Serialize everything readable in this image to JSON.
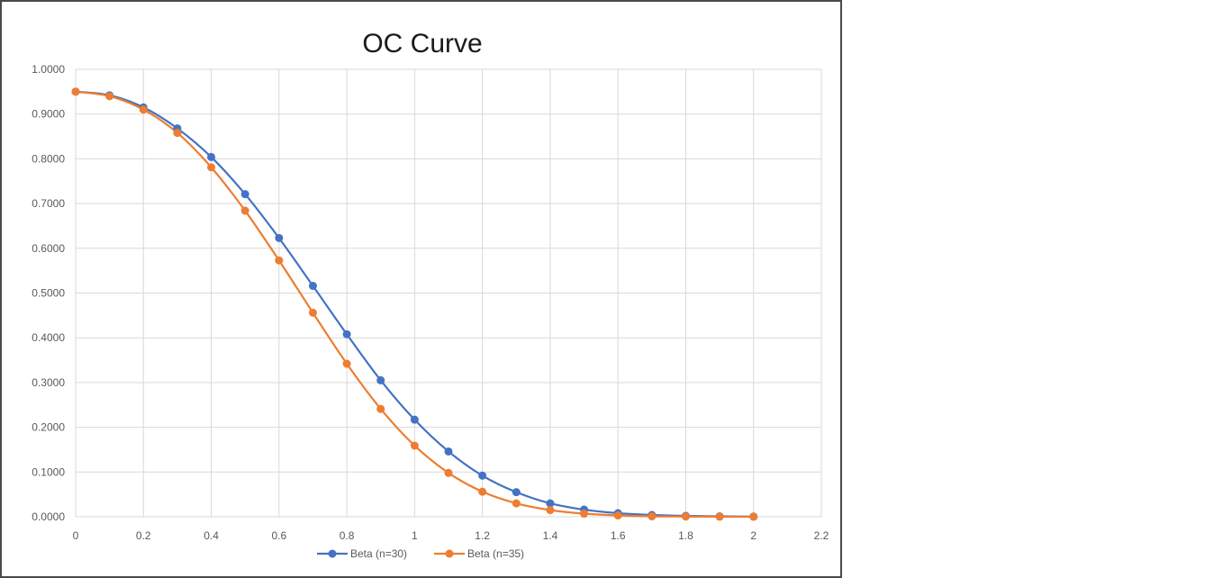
{
  "chart_data": {
    "type": "line",
    "title": "OC Curve",
    "xlabel": "",
    "ylabel": "",
    "xlim": [
      0,
      2.2
    ],
    "ylim": [
      0,
      1
    ],
    "x_ticks": [
      "0",
      "0.2",
      "0.4",
      "0.6",
      "0.8",
      "1",
      "1.2",
      "1.4",
      "1.6",
      "1.8",
      "2",
      "2.2"
    ],
    "y_ticks": [
      "0.0000",
      "0.1000",
      "0.2000",
      "0.3000",
      "0.4000",
      "0.5000",
      "0.6000",
      "0.7000",
      "0.8000",
      "0.9000",
      "1.0000"
    ],
    "grid": true,
    "legend_position": "bottom",
    "x": [
      0,
      0.1,
      0.2,
      0.3,
      0.4,
      0.5,
      0.6,
      0.7,
      0.8,
      0.9,
      1.0,
      1.1,
      1.2,
      1.3,
      1.4,
      1.5,
      1.6,
      1.7,
      1.8,
      1.9,
      2.0
    ],
    "series": [
      {
        "name": "Beta (n=30)",
        "color": "#4472c4",
        "values": [
          0.95,
          0.942,
          0.915,
          0.868,
          0.804,
          0.721,
          0.623,
          0.516,
          0.408,
          0.305,
          0.217,
          0.146,
          0.092,
          0.055,
          0.03,
          0.016,
          0.008,
          0.004,
          0.002,
          0.001,
          0.0004
        ]
      },
      {
        "name": "Beta (n=35)",
        "color": "#ed7d31",
        "values": [
          0.95,
          0.94,
          0.91,
          0.858,
          0.781,
          0.684,
          0.573,
          0.456,
          0.342,
          0.241,
          0.159,
          0.098,
          0.056,
          0.03,
          0.015,
          0.007,
          0.003,
          0.001,
          0.0005,
          0.0002,
          0.0001
        ]
      }
    ]
  }
}
